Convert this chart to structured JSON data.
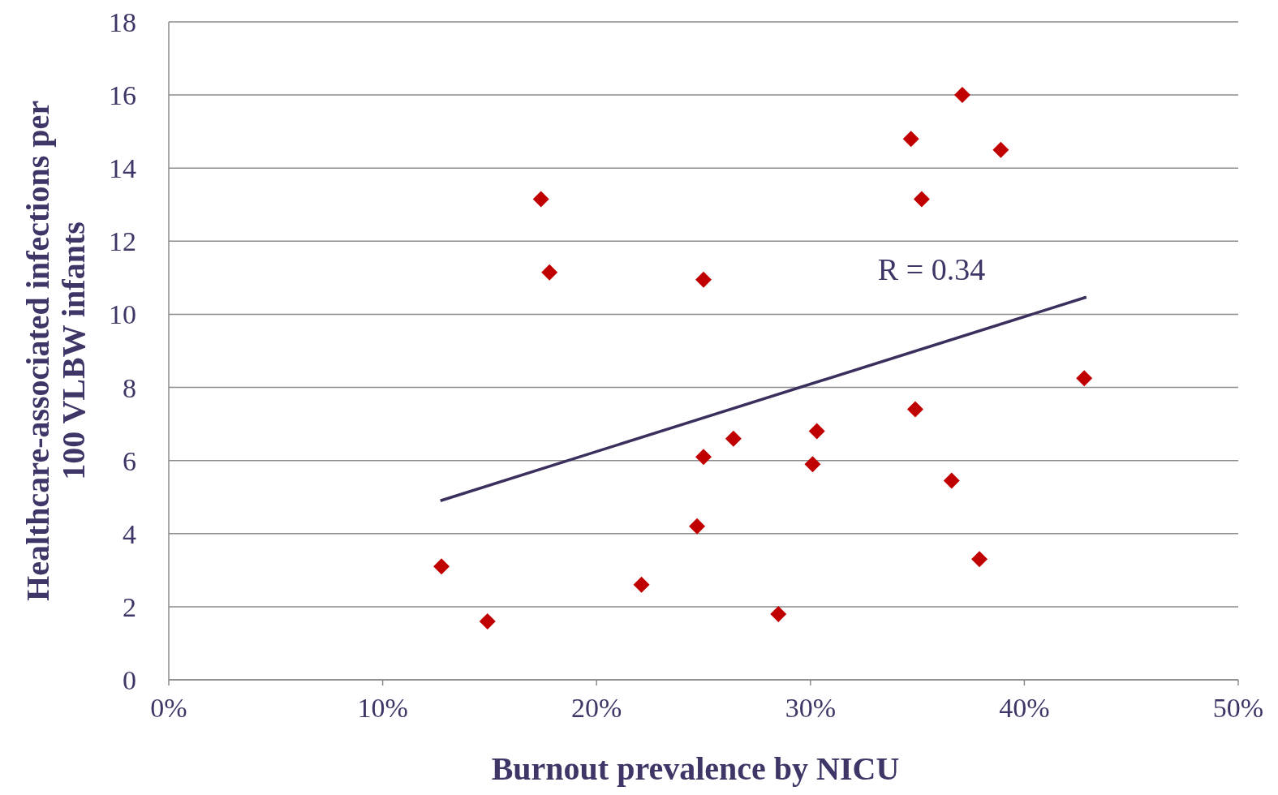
{
  "chart_data": {
    "type": "scatter",
    "xlabel": "Burnout prevalence by NICU",
    "ylabel": "Healthcare-associated infections per 100 VLBW infants",
    "xlim": [
      0,
      50
    ],
    "xticks": [
      {
        "value": 0,
        "label": "0%"
      },
      {
        "value": 10,
        "label": "10%"
      },
      {
        "value": 20,
        "label": "20%"
      },
      {
        "value": 30,
        "label": "30%"
      },
      {
        "value": 40,
        "label": "40%"
      },
      {
        "value": 50,
        "label": "50%"
      }
    ],
    "ylim": [
      0,
      18
    ],
    "yticks": [
      0,
      2,
      4,
      6,
      8,
      10,
      12,
      14,
      16,
      18
    ],
    "grid": "y",
    "series": [
      {
        "marker": "diamond",
        "color": "#c00000",
        "x": [
          12.75,
          14.9,
          17.4,
          17.8,
          22.1,
          24.7,
          25.0,
          25.0,
          26.4,
          28.5,
          30.1,
          30.3,
          34.7,
          34.9,
          35.2,
          36.6,
          37.1,
          37.9,
          38.9,
          42.8
        ],
        "values": [
          3.1,
          1.6,
          13.15,
          11.15,
          2.6,
          4.2,
          6.1,
          10.95,
          6.6,
          1.8,
          5.9,
          6.8,
          14.8,
          7.4,
          13.15,
          5.45,
          16.0,
          3.3,
          14.5,
          8.25
        ]
      },
      {
        "type": "line",
        "color": "#3b2f5e",
        "x": [
          12.7,
          42.9
        ],
        "values": [
          4.9,
          10.47
        ]
      }
    ],
    "annotations": [
      "R = 0.34"
    ]
  }
}
